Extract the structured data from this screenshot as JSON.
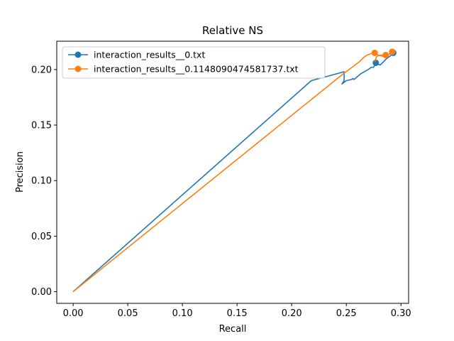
{
  "chart_data": {
    "type": "line",
    "title": "Relative NS",
    "xlabel": "Recall",
    "ylabel": "Precision",
    "xlim": [
      -0.015,
      0.307
    ],
    "ylim": [
      -0.0105,
      0.2255
    ],
    "xticks": [
      "0.00",
      "0.05",
      "0.10",
      "0.15",
      "0.20",
      "0.25",
      "0.30"
    ],
    "yticks": [
      "0.00",
      "0.05",
      "0.10",
      "0.15",
      "0.20"
    ],
    "legend_position": "top-left",
    "grid": false,
    "series": [
      {
        "name": "interaction_results__0.txt",
        "color": "#1f77b4",
        "points": [
          [
            0.0,
            0.0
          ],
          [
            0.218,
            0.19
          ],
          [
            0.248,
            0.198
          ],
          [
            0.248,
            0.19
          ],
          [
            0.246,
            0.187
          ],
          [
            0.25,
            0.19
          ],
          [
            0.255,
            0.191
          ],
          [
            0.256,
            0.192
          ],
          [
            0.257,
            0.191
          ],
          [
            0.263,
            0.196
          ],
          [
            0.27,
            0.2
          ],
          [
            0.273,
            0.202
          ],
          [
            0.275,
            0.202
          ],
          [
            0.277,
            0.206
          ],
          [
            0.279,
            0.205
          ],
          [
            0.281,
            0.204
          ],
          [
            0.284,
            0.207
          ],
          [
            0.287,
            0.21
          ],
          [
            0.29,
            0.212
          ],
          [
            0.293,
            0.215
          ]
        ],
        "markers": [
          [
            0.277,
            0.206
          ],
          [
            0.293,
            0.215
          ]
        ]
      },
      {
        "name": "interaction_results__0.1148090474581737.txt",
        "color": "#ff7f0e",
        "points": [
          [
            0.0,
            0.0
          ],
          [
            0.247,
            0.196
          ],
          [
            0.262,
            0.207
          ],
          [
            0.266,
            0.211
          ],
          [
            0.269,
            0.213
          ],
          [
            0.272,
            0.214
          ],
          [
            0.274,
            0.215
          ],
          [
            0.276,
            0.216
          ],
          [
            0.279,
            0.213
          ],
          [
            0.283,
            0.212
          ],
          [
            0.286,
            0.212
          ],
          [
            0.29,
            0.214
          ],
          [
            0.292,
            0.216
          ],
          [
            0.288,
            0.213
          ],
          [
            0.285,
            0.213
          ],
          [
            0.281,
            0.213
          ],
          [
            0.278,
            0.212
          ],
          [
            0.276,
            0.207
          ]
        ],
        "markers": [
          [
            0.276,
            0.215
          ],
          [
            0.286,
            0.213
          ],
          [
            0.292,
            0.216
          ]
        ]
      }
    ]
  }
}
